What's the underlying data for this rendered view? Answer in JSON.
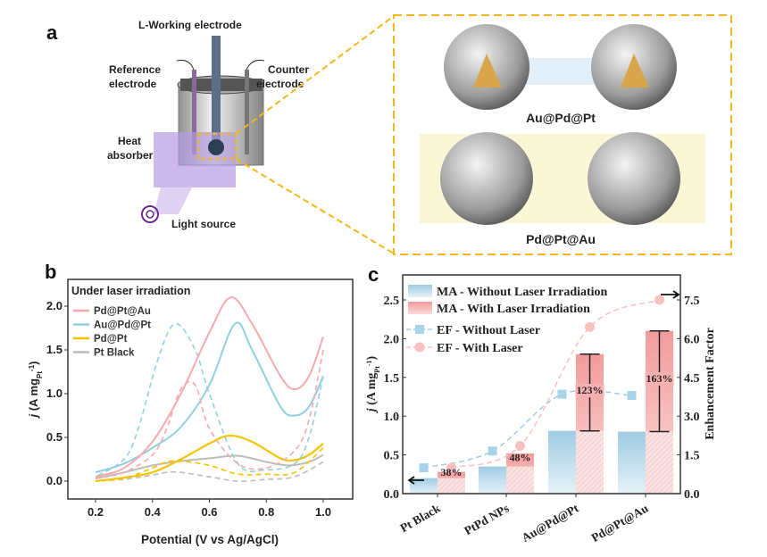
{
  "panel_a": {
    "label": "a",
    "working_electrode": "L-Working electrode",
    "reference_electrode": [
      "Reference",
      "electrode"
    ],
    "counter_electrode": [
      "Counter",
      "electrode"
    ],
    "heat_absorber": [
      "Heat",
      "absorber"
    ],
    "light_source": "Light source",
    "particle_top": "Au@Pd@Pt",
    "particle_bottom": "Pd@Pt@Au",
    "accent_color": "#f2b71e"
  },
  "chart_data": [
    {
      "panel": "b",
      "type": "line",
      "legend_title": "Under laser irradiation",
      "xlabel": "Potential (V vs Ag/AgCl)",
      "ylabel": "j (A mgPt-1)",
      "xlim": [
        0.1,
        1.1
      ],
      "ylim": [
        -0.2,
        2.2
      ],
      "xticks": [
        "0.2",
        "0.4",
        "0.6",
        "0.8",
        "1.0"
      ],
      "yticks": [
        "0.0",
        "0.5",
        "1.0",
        "1.5",
        "2.0"
      ],
      "grid": false,
      "legend_placement": "top-left",
      "series": [
        {
          "name": "Pd@Pt@Au",
          "color": "#f7a9ad",
          "forward": [
            [
              0.2,
              0.05
            ],
            [
              0.3,
              0.15
            ],
            [
              0.4,
              0.45
            ],
            [
              0.5,
              1.0
            ],
            [
              0.6,
              1.7
            ],
            [
              0.675,
              2.1
            ],
            [
              0.75,
              1.8
            ],
            [
              0.85,
              1.2
            ],
            [
              0.9,
              1.05
            ],
            [
              0.95,
              1.2
            ],
            [
              1.0,
              1.65
            ]
          ],
          "reverse": [
            [
              1.0,
              1.5
            ],
            [
              0.95,
              0.7
            ],
            [
              0.9,
              0.35
            ],
            [
              0.8,
              0.15
            ],
            [
              0.7,
              0.2
            ],
            [
              0.6,
              0.6
            ],
            [
              0.55,
              1.1
            ],
            [
              0.5,
              1.05
            ],
            [
              0.45,
              0.6
            ],
            [
              0.4,
              0.3
            ],
            [
              0.3,
              0.1
            ],
            [
              0.2,
              0.03
            ]
          ]
        },
        {
          "name": "Au@Pd@Pt",
          "color": "#8fd0e0",
          "forward": [
            [
              0.2,
              0.1
            ],
            [
              0.3,
              0.2
            ],
            [
              0.4,
              0.38
            ],
            [
              0.5,
              0.62
            ],
            [
              0.6,
              1.1
            ],
            [
              0.69,
              1.8
            ],
            [
              0.75,
              1.5
            ],
            [
              0.85,
              0.85
            ],
            [
              0.9,
              0.75
            ],
            [
              0.95,
              0.85
            ],
            [
              1.0,
              1.2
            ]
          ],
          "reverse": [
            [
              1.0,
              1.2
            ],
            [
              0.95,
              0.5
            ],
            [
              0.9,
              0.2
            ],
            [
              0.8,
              0.13
            ],
            [
              0.7,
              0.2
            ],
            [
              0.6,
              1.0
            ],
            [
              0.55,
              1.5
            ],
            [
              0.48,
              1.8
            ],
            [
              0.42,
              1.4
            ],
            [
              0.35,
              0.6
            ],
            [
              0.3,
              0.25
            ],
            [
              0.2,
              0.05
            ]
          ]
        },
        {
          "name": "Pd@Pt",
          "color": "#f5c400",
          "forward": [
            [
              0.2,
              0.0
            ],
            [
              0.3,
              0.04
            ],
            [
              0.4,
              0.1
            ],
            [
              0.5,
              0.25
            ],
            [
              0.6,
              0.43
            ],
            [
              0.67,
              0.52
            ],
            [
              0.75,
              0.45
            ],
            [
              0.85,
              0.26
            ],
            [
              0.9,
              0.24
            ],
            [
              0.95,
              0.3
            ],
            [
              1.0,
              0.43
            ]
          ],
          "reverse": [
            [
              1.0,
              0.38
            ],
            [
              0.9,
              0.1
            ],
            [
              0.8,
              0.08
            ],
            [
              0.7,
              0.08
            ],
            [
              0.6,
              0.18
            ],
            [
              0.5,
              0.23
            ],
            [
              0.45,
              0.22
            ],
            [
              0.4,
              0.15
            ],
            [
              0.3,
              0.03
            ],
            [
              0.2,
              0.0
            ]
          ]
        },
        {
          "name": "Pt Black",
          "color": "#bcbcbc",
          "forward": [
            [
              0.2,
              0.03
            ],
            [
              0.3,
              0.1
            ],
            [
              0.4,
              0.18
            ],
            [
              0.5,
              0.23
            ],
            [
              0.6,
              0.26
            ],
            [
              0.7,
              0.29
            ],
            [
              0.8,
              0.22
            ],
            [
              0.88,
              0.18
            ],
            [
              0.95,
              0.22
            ],
            [
              1.0,
              0.3
            ]
          ],
          "reverse": [
            [
              1.0,
              0.22
            ],
            [
              0.9,
              0.05
            ],
            [
              0.8,
              0.02
            ],
            [
              0.7,
              0.0
            ],
            [
              0.6,
              0.05
            ],
            [
              0.5,
              0.1
            ],
            [
              0.45,
              0.1
            ],
            [
              0.4,
              0.07
            ],
            [
              0.3,
              0.02
            ],
            [
              0.2,
              0.01
            ]
          ]
        }
      ]
    },
    {
      "panel": "c",
      "type": "bar",
      "categories": [
        "Pt Black",
        "PtPd NPs",
        "Au@Pd@Pt",
        "Pd@Pt@Au"
      ],
      "ylabel": "j (A mgPt-1)",
      "y2label": "Enhancement Factor",
      "ylim": [
        0,
        2.8
      ],
      "y2lim": [
        0,
        8.4
      ],
      "yticks": [
        "0.0",
        "0.5",
        "1.0",
        "1.5",
        "2.0",
        "2.5"
      ],
      "y2ticks": [
        "0.0",
        "1.5",
        "3.0",
        "4.5",
        "6.0",
        "7.5"
      ],
      "legend_placement": "top-left",
      "series": [
        {
          "name": "MA - Without Laser Irradiation",
          "axis": "left",
          "kind": "bar",
          "color": "#a9d3e8",
          "values": [
            0.2,
            0.35,
            0.81,
            0.8
          ]
        },
        {
          "name": "MA - With Laser Irradiation",
          "axis": "left",
          "kind": "bar",
          "color": "#f4a3a3",
          "values": [
            0.28,
            0.52,
            1.8,
            2.1
          ]
        },
        {
          "name": "EF - Without Laser",
          "axis": "right",
          "kind": "line-square",
          "color": "#a9d3e8",
          "values": [
            1.0,
            1.65,
            3.85,
            3.8
          ]
        },
        {
          "name": "EF - With Laser",
          "axis": "right",
          "kind": "line-circle",
          "color": "#f8c0c0",
          "values": [
            1.0,
            1.85,
            6.45,
            7.5
          ]
        }
      ],
      "annotations": [
        "38%",
        "48%",
        "123%",
        "163%"
      ]
    }
  ],
  "labels": {
    "b": "b",
    "c": "c"
  }
}
